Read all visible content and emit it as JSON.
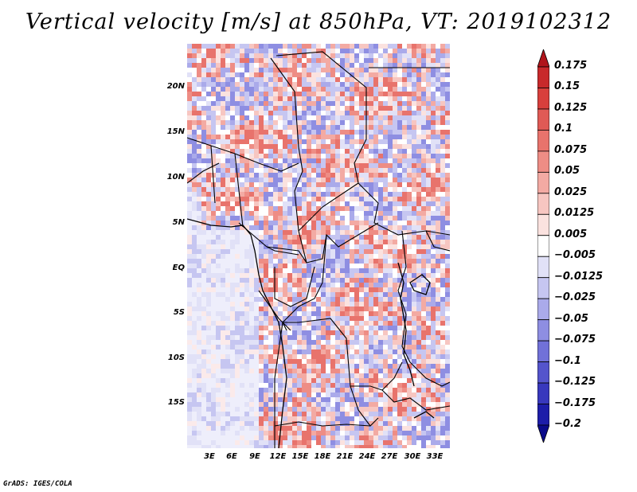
{
  "title": "Vertical velocity [m/s] at 850hPa, VT: 2019102312",
  "credit": "GrADS: IGES/COLA",
  "map": {
    "variable": "Vertical velocity",
    "units": "m/s",
    "level": "850hPa",
    "valid_time": "2019102312",
    "lat_labels": [
      "20N",
      "15N",
      "10N",
      "5N",
      "EQ",
      "5S",
      "10S",
      "15S"
    ],
    "lon_labels": [
      "3E",
      "6E",
      "9E",
      "12E",
      "15E",
      "18E",
      "21E",
      "24E",
      "27E",
      "30E",
      "33E"
    ]
  },
  "colorbar": {
    "labels": [
      "0.175",
      "0.15",
      "0.125",
      "0.1",
      "0.075",
      "0.05",
      "0.025",
      "0.0125",
      "0.005",
      "−0.005",
      "−0.0125",
      "−0.025",
      "−0.05",
      "−0.075",
      "−0.1",
      "−0.125",
      "−0.175",
      "−0.2"
    ],
    "colors": [
      "#b0151b",
      "#c8292b",
      "#d83f3c",
      "#e05a55",
      "#e8736c",
      "#ee8d85",
      "#f3aaa3",
      "#f7c6c1",
      "#fbe2df",
      "#ffffff",
      "#e1e1f7",
      "#c6c6f1",
      "#aaaaea",
      "#8e8ee2",
      "#7171d8",
      "#5454cc",
      "#3838bd",
      "#1d1da9",
      "#0b0b8a"
    ]
  }
}
